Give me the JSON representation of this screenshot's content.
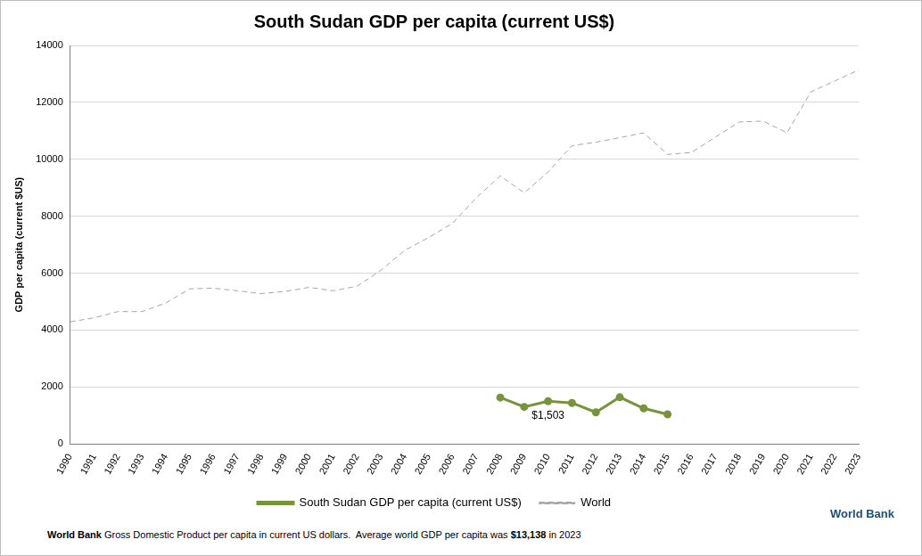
{
  "chart_data": {
    "type": "line",
    "title": "South Sudan GDP per capita (current US$)",
    "y_label": "GDP per capita (current $US)",
    "categories": [
      "1990",
      "1991",
      "1992",
      "1993",
      "1994",
      "1995",
      "1996",
      "1997",
      "1998",
      "1999",
      "2000",
      "2001",
      "2002",
      "2003",
      "2004",
      "2005",
      "2006",
      "2007",
      "2008",
      "2009",
      "2010",
      "2011",
      "2012",
      "2013",
      "2014",
      "2015",
      "2016",
      "2017",
      "2018",
      "2019",
      "2020",
      "2021",
      "2022",
      "2023"
    ],
    "series": [
      {
        "name": "South Sudan GDP per capita (current US$)",
        "color": "#77933c",
        "marker": "circle",
        "line_style": "solid",
        "values": [
          null,
          null,
          null,
          null,
          null,
          null,
          null,
          null,
          null,
          null,
          null,
          null,
          null,
          null,
          null,
          null,
          null,
          null,
          1630,
          1300,
          1503,
          1440,
          1110,
          1640,
          1250,
          1040,
          null,
          null,
          null,
          null,
          null,
          null,
          null,
          null
        ]
      },
      {
        "name": "World",
        "color": "#a6a6a6",
        "marker": "none",
        "line_style": "dashed",
        "values": [
          4290,
          4430,
          4650,
          4650,
          4950,
          5450,
          5470,
          5380,
          5280,
          5360,
          5500,
          5380,
          5540,
          6100,
          6800,
          7250,
          7750,
          8650,
          9420,
          8820,
          9550,
          10480,
          10600,
          10760,
          10930,
          10170,
          10240,
          10780,
          11310,
          11340,
          10930,
          12370,
          12750,
          13138
        ]
      }
    ],
    "ylim": [
      0,
      14000
    ],
    "yticks": [
      0,
      2000,
      4000,
      6000,
      8000,
      10000,
      12000,
      14000
    ],
    "grid": true,
    "legend": "bottom",
    "annotations": [
      {
        "text": "$1,503",
        "x": "2010",
        "y": 1503
      }
    ],
    "brand": "World Bank",
    "footer": [
      {
        "text": "World Bank",
        "bold": true
      },
      {
        "text": " Gross Domestic Product per capita in current US dollars.  Average world GDP per capita was ",
        "bold": false
      },
      {
        "text": "$13,138",
        "bold": true
      },
      {
        "text": " in 2023",
        "bold": false
      }
    ]
  }
}
